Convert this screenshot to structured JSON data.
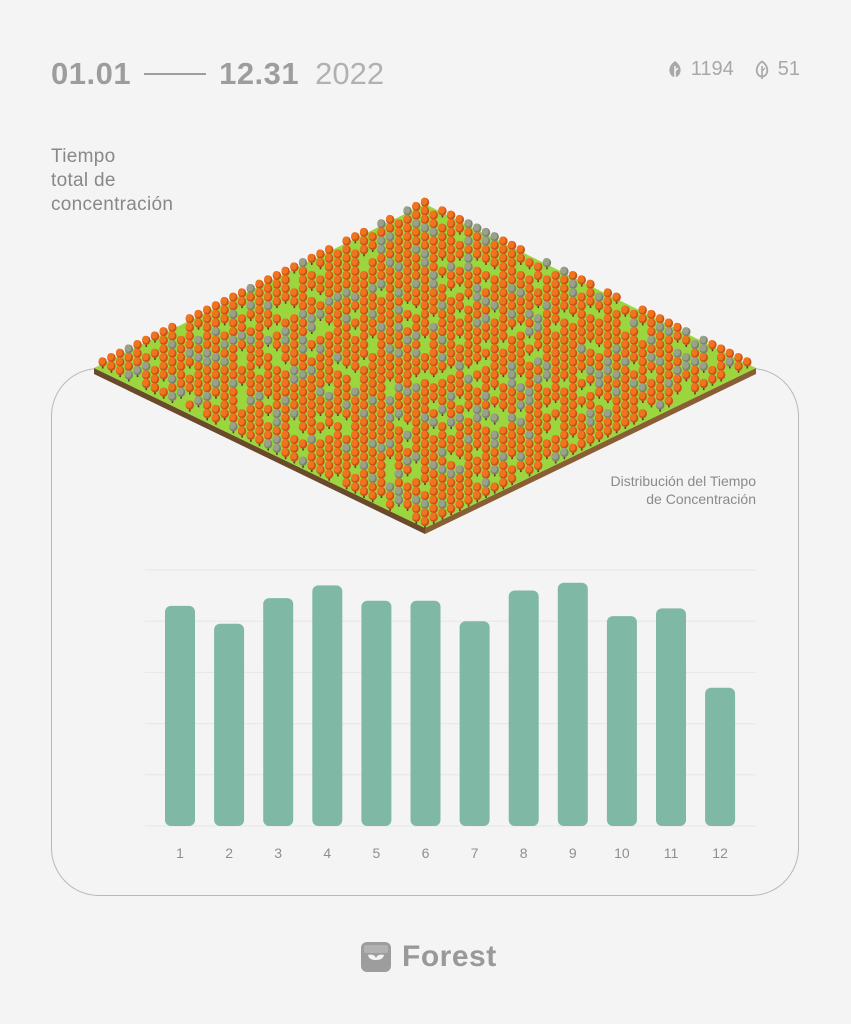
{
  "header": {
    "start_date": "01.01",
    "end_date": "12.31",
    "year": "2022",
    "trees_healthy": "1194",
    "trees_dead": "51"
  },
  "title": {
    "line1": "Tiempo",
    "line2": "total de",
    "line3": "concentración"
  },
  "chart_title": {
    "line1": "Distribución del Tiempo",
    "line2": "de Concentración"
  },
  "chart_data": {
    "type": "bar",
    "title": "Distribución del Tiempo de Concentración",
    "categories": [
      "1",
      "2",
      "3",
      "4",
      "5",
      "6",
      "7",
      "8",
      "9",
      "10",
      "11",
      "12"
    ],
    "values": [
      86,
      79,
      89,
      94,
      88,
      88,
      80,
      92,
      95,
      82,
      85,
      54
    ],
    "ylim": [
      0,
      100
    ],
    "grid": true,
    "bar_color": "#80b8a6",
    "xlabel": "",
    "ylabel": ""
  },
  "colors": {
    "background": "#f4f4f4",
    "bar": "#80b8a6",
    "grass": "#9bd63f",
    "tree": "#f0741e",
    "dead_tree": "#9aa08a",
    "text": "#9d9d9d"
  },
  "brand": {
    "name": "Forest",
    "icon": "forest-logo-icon"
  }
}
